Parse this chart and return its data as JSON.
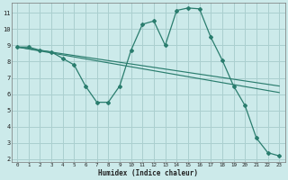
{
  "xlabel": "Humidex (Indice chaleur)",
  "line_color": "#2a7d6e",
  "bg_color": "#cceaea",
  "grid_color": "#aacfcf",
  "xlim": [
    -0.5,
    23.5
  ],
  "ylim": [
    1.8,
    11.6
  ],
  "yticks": [
    2,
    3,
    4,
    5,
    6,
    7,
    8,
    9,
    10,
    11
  ],
  "xticks": [
    0,
    1,
    2,
    3,
    4,
    5,
    6,
    7,
    8,
    9,
    10,
    11,
    12,
    13,
    14,
    15,
    16,
    17,
    18,
    19,
    20,
    21,
    22,
    23
  ],
  "line1_x": [
    0,
    1,
    2,
    3,
    4,
    5,
    6,
    7,
    8,
    9,
    10,
    11,
    12,
    13,
    14,
    15,
    16,
    17,
    18,
    19,
    20,
    21,
    22,
    23
  ],
  "line1_y": [
    8.9,
    8.9,
    8.7,
    8.6,
    8.2,
    7.8,
    6.5,
    5.5,
    5.5,
    6.5,
    8.7,
    10.3,
    10.5,
    9.0,
    11.15,
    11.3,
    11.25,
    9.5,
    8.1,
    6.5,
    5.3,
    3.3,
    2.4,
    2.2
  ],
  "line2_x": [
    0,
    23
  ],
  "line2_y": [
    8.9,
    6.5
  ],
  "line3_x": [
    0,
    23
  ],
  "line3_y": [
    8.9,
    6.1
  ]
}
